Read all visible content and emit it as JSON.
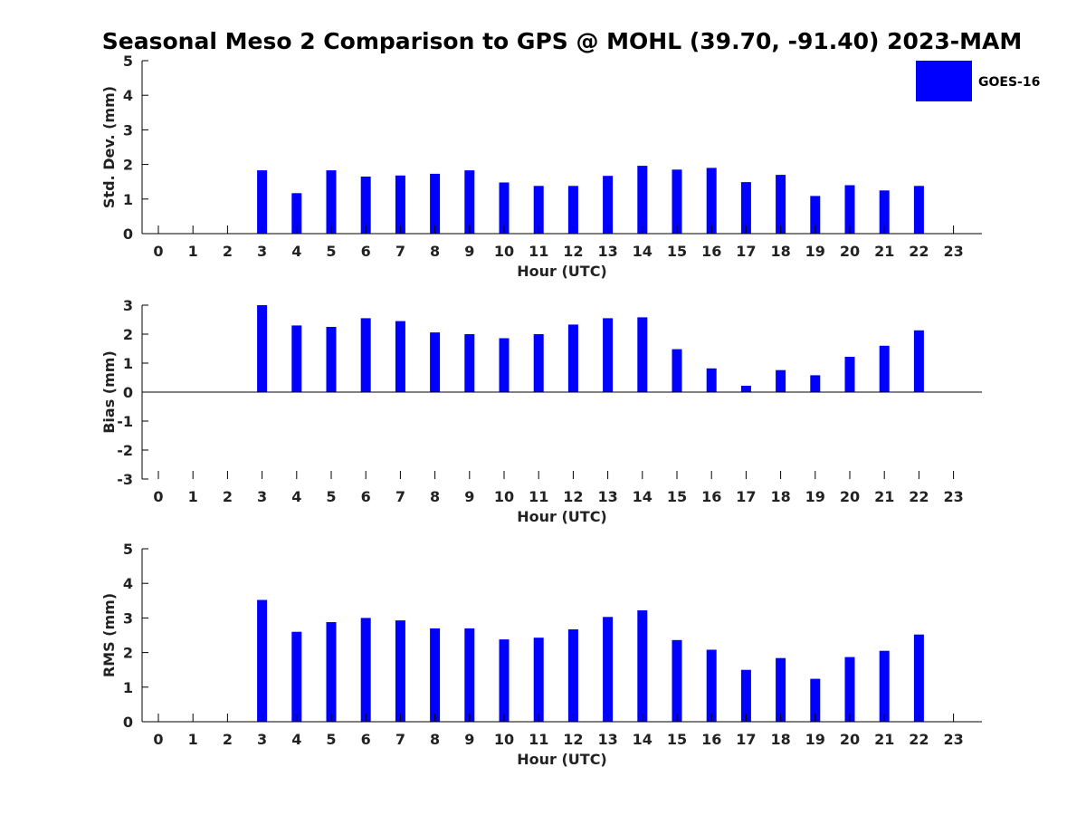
{
  "chart_data": {
    "type": "bar",
    "title": "Seasonal Meso 2 Comparison to GPS @ MOHL (39.70, -91.40) 2023-MAM",
    "legend": {
      "label": "GOES-16",
      "placement": "top-right"
    },
    "colors": {
      "bar": "#0000ff",
      "axis": "#000000",
      "text": "#222222"
    },
    "categories": [
      "0",
      "1",
      "2",
      "3",
      "4",
      "5",
      "6",
      "7",
      "8",
      "9",
      "10",
      "11",
      "12",
      "13",
      "14",
      "15",
      "16",
      "17",
      "18",
      "19",
      "20",
      "21",
      "22",
      "23"
    ],
    "panels": [
      {
        "id": "std",
        "ylabel": "Std. Dev. (mm)",
        "xlabel": "Hour (UTC)",
        "ylim": [
          0,
          5
        ],
        "yticks": [
          "0",
          "1",
          "2",
          "3",
          "4",
          "5"
        ],
        "values": [
          null,
          null,
          null,
          1.83,
          1.17,
          1.83,
          1.65,
          1.68,
          1.73,
          1.83,
          1.48,
          1.38,
          1.38,
          1.67,
          1.96,
          1.85,
          1.9,
          1.49,
          1.7,
          1.09,
          1.4,
          1.25,
          1.38,
          null
        ]
      },
      {
        "id": "bias",
        "ylabel": "Bias (mm)",
        "xlabel": "Hour (UTC)",
        "ylim": [
          -3,
          3
        ],
        "yticks": [
          "-3",
          "-2",
          "-1",
          "0",
          "1",
          "2",
          "3"
        ],
        "values": [
          null,
          null,
          null,
          3.0,
          2.3,
          2.25,
          2.55,
          2.45,
          2.06,
          2.0,
          1.86,
          2.0,
          2.33,
          2.55,
          2.58,
          1.48,
          0.82,
          0.22,
          0.76,
          0.58,
          1.22,
          1.6,
          2.13,
          null
        ]
      },
      {
        "id": "rms",
        "ylabel": "RMS (mm)",
        "xlabel": "Hour (UTC)",
        "ylim": [
          0,
          5
        ],
        "yticks": [
          "0",
          "1",
          "2",
          "3",
          "4",
          "5"
        ],
        "values": [
          null,
          null,
          null,
          3.52,
          2.6,
          2.88,
          3.0,
          2.93,
          2.7,
          2.7,
          2.38,
          2.43,
          2.67,
          3.03,
          3.22,
          2.36,
          2.08,
          1.5,
          1.84,
          1.24,
          1.87,
          2.05,
          2.52,
          null
        ]
      }
    ]
  }
}
